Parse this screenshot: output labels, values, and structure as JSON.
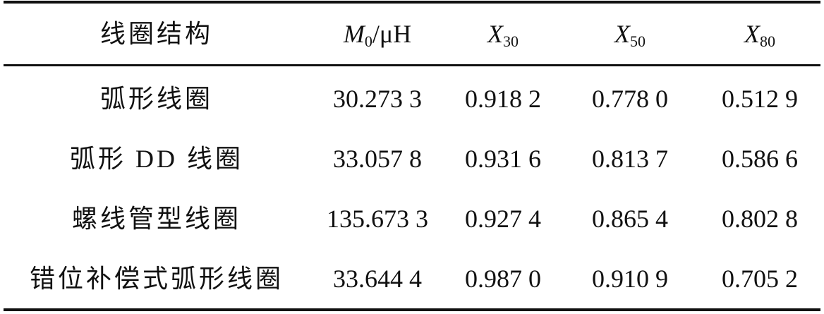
{
  "table": {
    "header": [
      "线圈结构",
      {
        "symbol": "M",
        "subscript": "0",
        "unit": "/μH"
      },
      {
        "symbol": "X",
        "subscript": "30"
      },
      {
        "symbol": "X",
        "subscript": "50"
      },
      {
        "symbol": "X",
        "subscript": "80"
      }
    ],
    "rows": [
      [
        "弧形线圈",
        "30.273 3",
        "0.918 2",
        "0.778 0",
        "0.512 9"
      ],
      [
        "弧形 DD 线圈",
        "33.057 8",
        "0.931 6",
        "0.813 7",
        "0.586 6"
      ],
      [
        "螺线管型线圈",
        "135.673 3",
        "0.927 4",
        "0.865 4",
        "0.802 8"
      ],
      [
        "错位补偿式弧形线圈",
        "33.644 4",
        "0.987 0",
        "0.910 9",
        "0.705 2"
      ]
    ]
  }
}
